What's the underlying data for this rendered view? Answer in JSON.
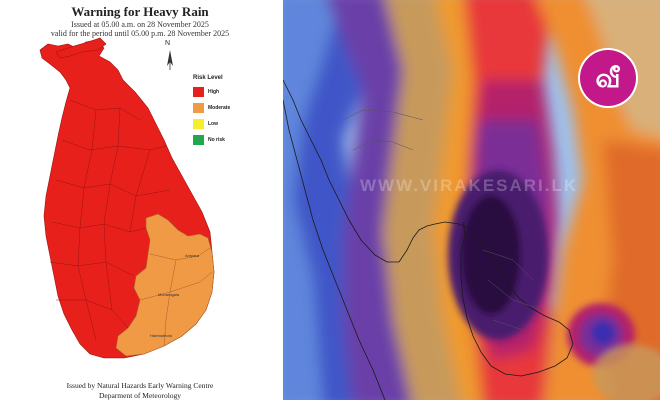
{
  "left_map": {
    "title": "Warning  for Heavy Rain",
    "issued": "Issued at 05.00 a.m. on 28 November 2025",
    "valid": "valid for the period until 05.00 p.m. 28 November 2025",
    "north_label": "N",
    "legend": {
      "title": "Risk Level",
      "items": [
        {
          "label": "High",
          "color": "#e8201c"
        },
        {
          "label": "Moderate",
          "color": "#f19a46"
        },
        {
          "label": "Low",
          "color": "#f4ee2b"
        },
        {
          "label": "No risk",
          "color": "#22a84a"
        }
      ]
    },
    "regions": {
      "ampara": "Ampara",
      "monaragala": "Monaragala",
      "hambantota": "Hambantota"
    },
    "footer_line1": "Issued by Natural Hazards Early Warning Centre",
    "footer_line2": "Deparment of Meteorology"
  },
  "right_map": {
    "watermark": "WWW.VIRAKESARI.LK"
  },
  "logo": {
    "glyph": "வீ",
    "color": "#c2188a"
  }
}
